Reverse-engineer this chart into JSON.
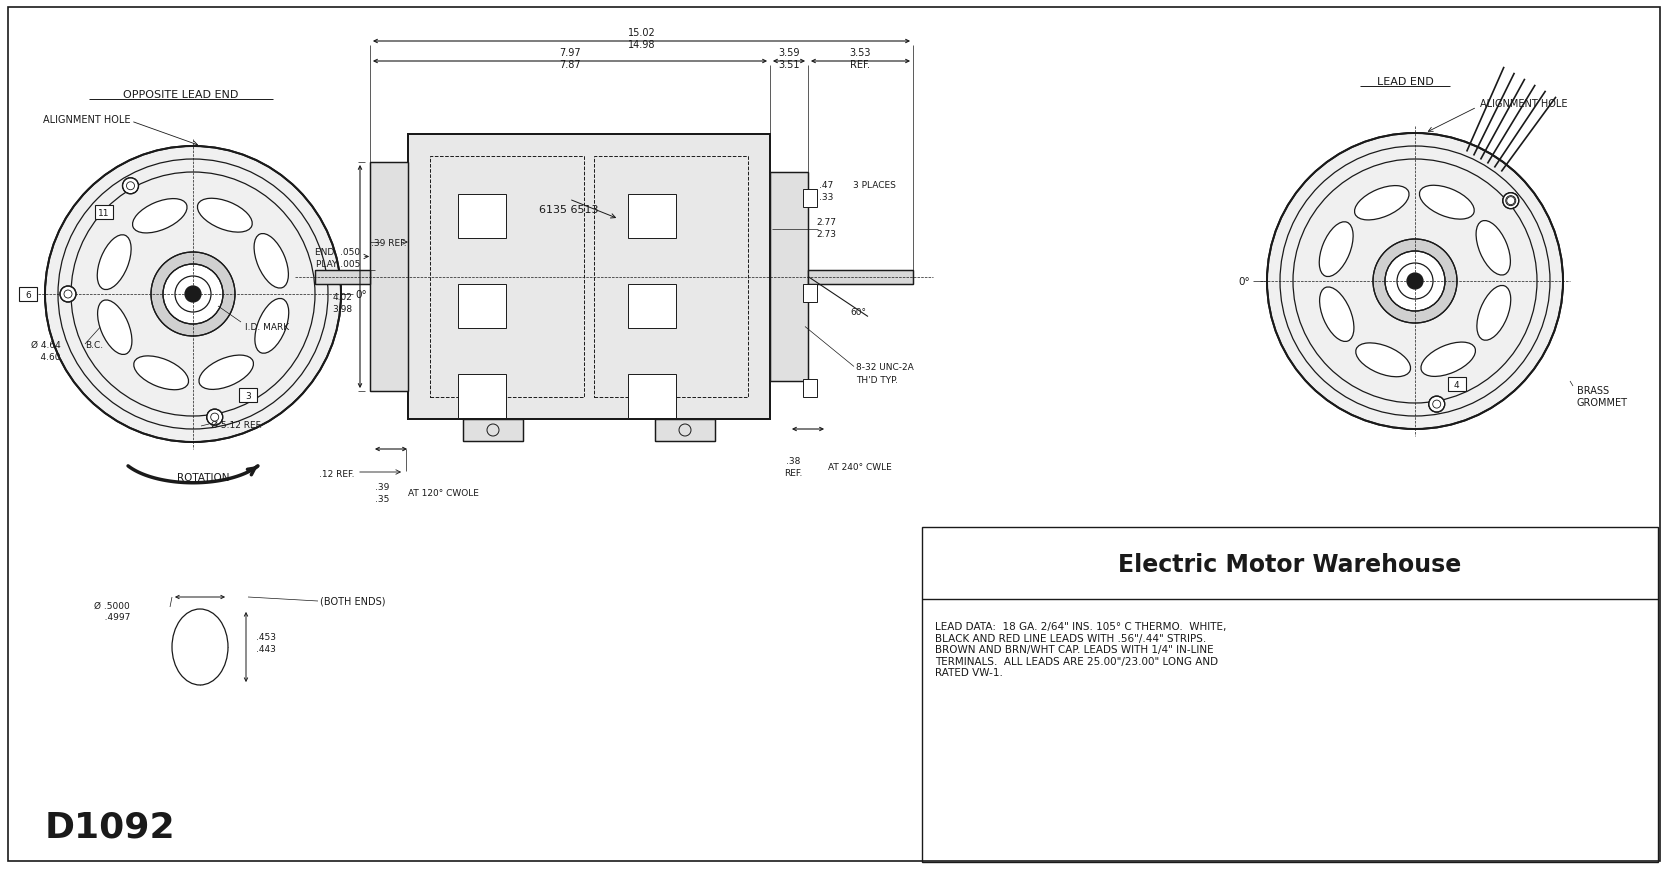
{
  "bg_color": "#ffffff",
  "line_color": "#1a1a1a",
  "title": "Electric Motor Warehouse",
  "model": "D1092",
  "lead_data": "LEAD DATA:  18 GA. 2/64\" INS. 105° C THERMO.  WHITE,\nBLACK AND RED LINE LEADS WITH .56\"/.44\" STRIPS.\nBROWN AND BRN/WHT CAP. LEADS WITH 1/4\" IN-LINE\nTERMINALS.  ALL LEADS ARE 25.00\"/23.00\" LONG AND\nRATED VW-1.",
  "opposite_lead_end": "OPPOSITE LEAD END",
  "lead_end": "LEAD END",
  "alignment_hole": "ALIGNMENT HOLE",
  "id_mark": "I.D. MARK",
  "rotation": "ROTATION",
  "brass_grommet": "BRASS\nGROMMET",
  "dims": {
    "total_length_top": "15.02",
    "total_length_bot": "14.98",
    "left_section_top": "7.97",
    "left_section_bot": "7.87",
    "mid_section_top": "3.59",
    "mid_section_bot": "3.51",
    "right_section_top": "3.53",
    "right_section_bot": "REF.",
    "end_play_top": "END  .050",
    "end_play_bot": "PLAY .005",
    "ref_039": ".39 REF.",
    "dim_047": ".47",
    "dim_033": ".33",
    "three_places": "3 PLACES",
    "dim_277": "2.77",
    "dim_273": "2.73",
    "dim_060": "60°",
    "dim_402": "4.02",
    "dim_398": "3.98",
    "part_num": "6135 6513",
    "dim_832": "8-32 UNC-2A",
    "thd_typ": "TH'D TYP.",
    "dim_038": ".38",
    "ref2": "REF.",
    "at240": "AT 240° CWLE",
    "dim_012": ".12 REF.",
    "dim_039b": ".39",
    "dim_035": ".35",
    "at120": "AT 120° CWOLE",
    "shaft_5000": ".5000",
    "shaft_4997": ".4997",
    "shaft_453": ".453",
    "shaft_443": ".443",
    "both_ends": "(BOTH ENDS)"
  }
}
